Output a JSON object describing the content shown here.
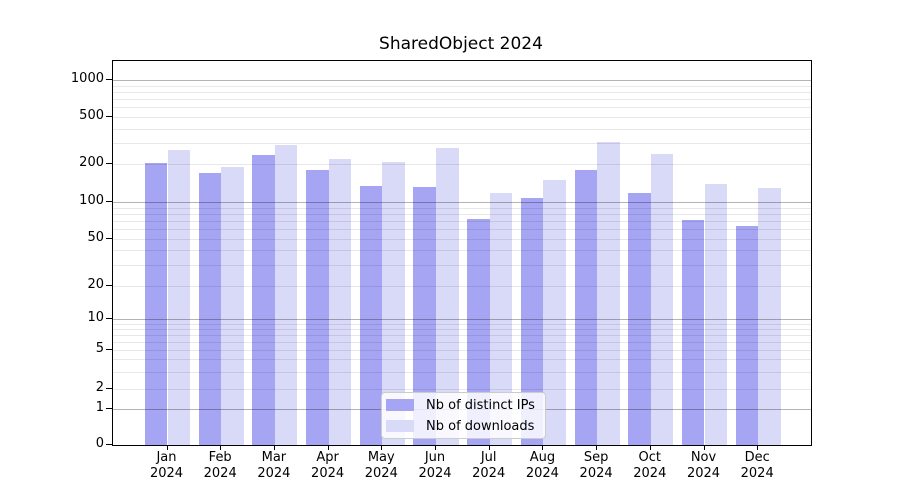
{
  "title": "SharedObject 2024",
  "chart_data": {
    "type": "bar",
    "title": "SharedObject 2024",
    "categories": [
      "Jan",
      "Feb",
      "Mar",
      "Apr",
      "May",
      "Jun",
      "Jul",
      "Aug",
      "Sep",
      "Oct",
      "Nov",
      "Dec"
    ],
    "category_year": "2024",
    "series": [
      {
        "name": "Nb of distinct IPs",
        "color": "#a5a5f3",
        "values": [
          205,
          170,
          240,
          180,
          135,
          132,
          73,
          108,
          180,
          119,
          71,
          63
        ]
      },
      {
        "name": "Nb of downloads",
        "color": "#d9d9f8",
        "values": [
          265,
          190,
          290,
          220,
          210,
          275,
          117,
          150,
          310,
          245,
          140,
          129
        ]
      }
    ],
    "yscale": "log-like",
    "yticks": [
      0,
      1,
      2,
      5,
      10,
      20,
      50,
      100,
      200,
      500,
      1000
    ],
    "grid": true,
    "legend_position": "lower center",
    "legend_labels": [
      "Nb of distinct IPs",
      "Nb of downloads"
    ]
  }
}
